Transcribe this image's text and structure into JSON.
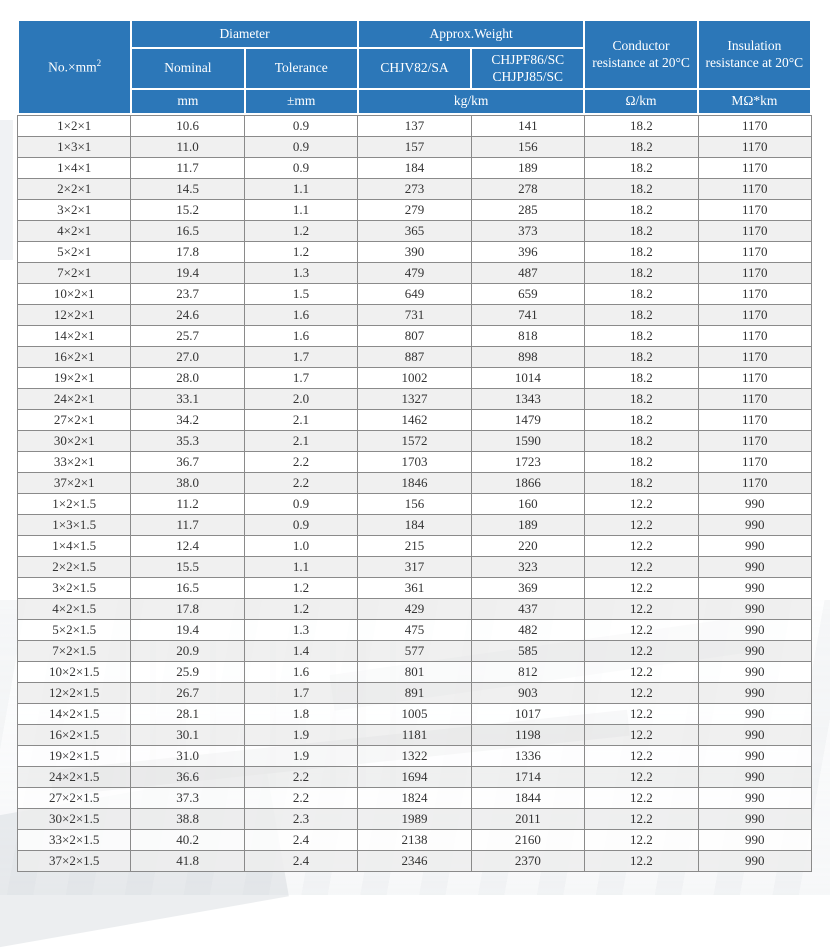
{
  "colors": {
    "header_bg": "#2c77b8",
    "header_text": "#ffffff",
    "row_alt_bg": "#ededed",
    "grid_border": "#8a8a8a",
    "body_text": "#333333"
  },
  "table": {
    "header": {
      "no_label": "No.×mm",
      "no_sup": "2",
      "diameter": "Diameter",
      "approx_weight": "Approx.Weight",
      "nominal": "Nominal",
      "tolerance": "Tolerance",
      "chjv": "CHJV82/SA",
      "chjpf_line1": "CHJPF86/SC",
      "chjpf_line2": "CHJPJ85/SC",
      "conductor": "Conductor resistance at 20°C",
      "insulation": "Insulation resistance at 20°C",
      "unit_mm": "mm",
      "unit_tolerance": "±mm",
      "unit_weight": "kg/km",
      "unit_conductor": "Ω/km",
      "unit_insulation": "MΩ*km"
    },
    "rows": [
      [
        "1×2×1",
        "10.6",
        "0.9",
        "137",
        "141",
        "18.2",
        "1170"
      ],
      [
        "1×3×1",
        "11.0",
        "0.9",
        "157",
        "156",
        "18.2",
        "1170"
      ],
      [
        "1×4×1",
        "11.7",
        "0.9",
        "184",
        "189",
        "18.2",
        "1170"
      ],
      [
        "2×2×1",
        "14.5",
        "1.1",
        "273",
        "278",
        "18.2",
        "1170"
      ],
      [
        "3×2×1",
        "15.2",
        "1.1",
        "279",
        "285",
        "18.2",
        "1170"
      ],
      [
        "4×2×1",
        "16.5",
        "1.2",
        "365",
        "373",
        "18.2",
        "1170"
      ],
      [
        "5×2×1",
        "17.8",
        "1.2",
        "390",
        "396",
        "18.2",
        "1170"
      ],
      [
        "7×2×1",
        "19.4",
        "1.3",
        "479",
        "487",
        "18.2",
        "1170"
      ],
      [
        "10×2×1",
        "23.7",
        "1.5",
        "649",
        "659",
        "18.2",
        "1170"
      ],
      [
        "12×2×1",
        "24.6",
        "1.6",
        "731",
        "741",
        "18.2",
        "1170"
      ],
      [
        "14×2×1",
        "25.7",
        "1.6",
        "807",
        "818",
        "18.2",
        "1170"
      ],
      [
        "16×2×1",
        "27.0",
        "1.7",
        "887",
        "898",
        "18.2",
        "1170"
      ],
      [
        "19×2×1",
        "28.0",
        "1.7",
        "1002",
        "1014",
        "18.2",
        "1170"
      ],
      [
        "24×2×1",
        "33.1",
        "2.0",
        "1327",
        "1343",
        "18.2",
        "1170"
      ],
      [
        "27×2×1",
        "34.2",
        "2.1",
        "1462",
        "1479",
        "18.2",
        "1170"
      ],
      [
        "30×2×1",
        "35.3",
        "2.1",
        "1572",
        "1590",
        "18.2",
        "1170"
      ],
      [
        "33×2×1",
        "36.7",
        "2.2",
        "1703",
        "1723",
        "18.2",
        "1170"
      ],
      [
        "37×2×1",
        "38.0",
        "2.2",
        "1846",
        "1866",
        "18.2",
        "1170"
      ],
      [
        "1×2×1.5",
        "11.2",
        "0.9",
        "156",
        "160",
        "12.2",
        "990"
      ],
      [
        "1×3×1.5",
        "11.7",
        "0.9",
        "184",
        "189",
        "12.2",
        "990"
      ],
      [
        "1×4×1.5",
        "12.4",
        "1.0",
        "215",
        "220",
        "12.2",
        "990"
      ],
      [
        "2×2×1.5",
        "15.5",
        "1.1",
        "317",
        "323",
        "12.2",
        "990"
      ],
      [
        "3×2×1.5",
        "16.5",
        "1.2",
        "361",
        "369",
        "12.2",
        "990"
      ],
      [
        "4×2×1.5",
        "17.8",
        "1.2",
        "429",
        "437",
        "12.2",
        "990"
      ],
      [
        "5×2×1.5",
        "19.4",
        "1.3",
        "475",
        "482",
        "12.2",
        "990"
      ],
      [
        "7×2×1.5",
        "20.9",
        "1.4",
        "577",
        "585",
        "12.2",
        "990"
      ],
      [
        "10×2×1.5",
        "25.9",
        "1.6",
        "801",
        "812",
        "12.2",
        "990"
      ],
      [
        "12×2×1.5",
        "26.7",
        "1.7",
        "891",
        "903",
        "12.2",
        "990"
      ],
      [
        "14×2×1.5",
        "28.1",
        "1.8",
        "1005",
        "1017",
        "12.2",
        "990"
      ],
      [
        "16×2×1.5",
        "30.1",
        "1.9",
        "1181",
        "1198",
        "12.2",
        "990"
      ],
      [
        "19×2×1.5",
        "31.0",
        "1.9",
        "1322",
        "1336",
        "12.2",
        "990"
      ],
      [
        "24×2×1.5",
        "36.6",
        "2.2",
        "1694",
        "1714",
        "12.2",
        "990"
      ],
      [
        "27×2×1.5",
        "37.3",
        "2.2",
        "1824",
        "1844",
        "12.2",
        "990"
      ],
      [
        "30×2×1.5",
        "38.8",
        "2.3",
        "1989",
        "2011",
        "12.2",
        "990"
      ],
      [
        "33×2×1.5",
        "40.2",
        "2.4",
        "2138",
        "2160",
        "12.2",
        "990"
      ],
      [
        "37×2×1.5",
        "41.8",
        "2.4",
        "2346",
        "2370",
        "12.2",
        "990"
      ]
    ]
  }
}
